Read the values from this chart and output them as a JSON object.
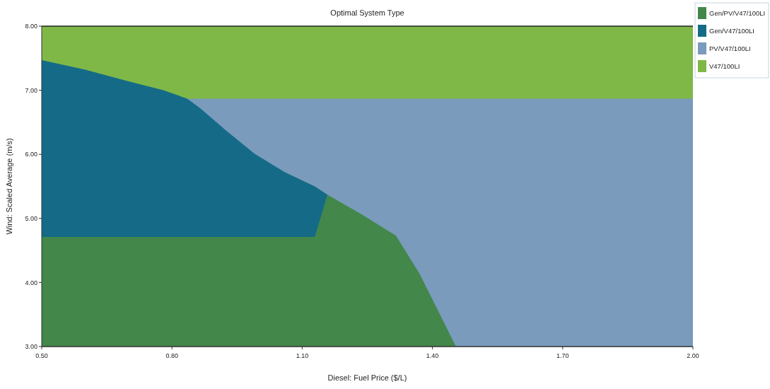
{
  "chart_data": {
    "type": "area",
    "title": "Optimal System Type",
    "xlabel": "Diesel: Fuel Price ($/L)",
    "ylabel": "Wind: Scaled Average (m/s)",
    "x": [
      0.5,
      0.6,
      0.7,
      0.78,
      0.835,
      0.865,
      0.925,
      0.99,
      1.06,
      1.129,
      1.158,
      1.24,
      1.316,
      1.37,
      1.41,
      1.454,
      1.7,
      2.0
    ],
    "series": [
      {
        "name": "Gen/PV/V47/100LI",
        "color": "#43874a",
        "values": [
          4.71,
          4.71,
          4.71,
          4.71,
          4.71,
          4.71,
          4.71,
          4.71,
          4.71,
          4.71,
          5.37,
          5.05,
          4.73,
          4.14,
          3.6,
          3.0,
          3.0,
          3.0
        ]
      },
      {
        "name": "Gen/V47/100LI",
        "color": "#156b87",
        "values": [
          7.47,
          7.32,
          7.14,
          7.0,
          6.87,
          6.72,
          6.37,
          6.01,
          5.72,
          5.5,
          5.37,
          null,
          null,
          null,
          null,
          null,
          null,
          null
        ]
      },
      {
        "name": "PV/V47/100LI",
        "color": "#7a9bbb",
        "values": [
          null,
          null,
          null,
          null,
          6.87,
          6.87,
          6.87,
          6.87,
          6.87,
          6.87,
          6.87,
          6.87,
          6.87,
          6.87,
          6.87,
          6.87,
          6.87,
          6.87
        ]
      },
      {
        "name": "V47/100LI",
        "color": "#7fb847",
        "values": [
          8,
          8,
          8,
          8,
          8,
          8,
          8,
          8,
          8,
          8,
          8,
          8,
          8,
          8,
          8,
          8,
          8,
          8
        ]
      }
    ],
    "xlim": [
      0.5,
      2.0
    ],
    "xticks": [
      {
        "value": 0.5,
        "label": "0.50"
      },
      {
        "value": 0.8,
        "label": "0.80"
      },
      {
        "value": 1.1,
        "label": "1.10"
      },
      {
        "value": 1.4,
        "label": "1.40"
      },
      {
        "value": 1.7,
        "label": "1.70"
      },
      {
        "value": 2.0,
        "label": "2.00"
      }
    ],
    "ylim": [
      3,
      8
    ],
    "yticks": [
      {
        "value": 3,
        "label": "3.00"
      },
      {
        "value": 4,
        "label": "4.00"
      },
      {
        "value": 5,
        "label": "5.00"
      },
      {
        "value": 6,
        "label": "6.00"
      },
      {
        "value": 7,
        "label": "7.00"
      },
      {
        "value": 8,
        "label": "8.00"
      }
    ],
    "grid": false,
    "legend": "top right"
  }
}
